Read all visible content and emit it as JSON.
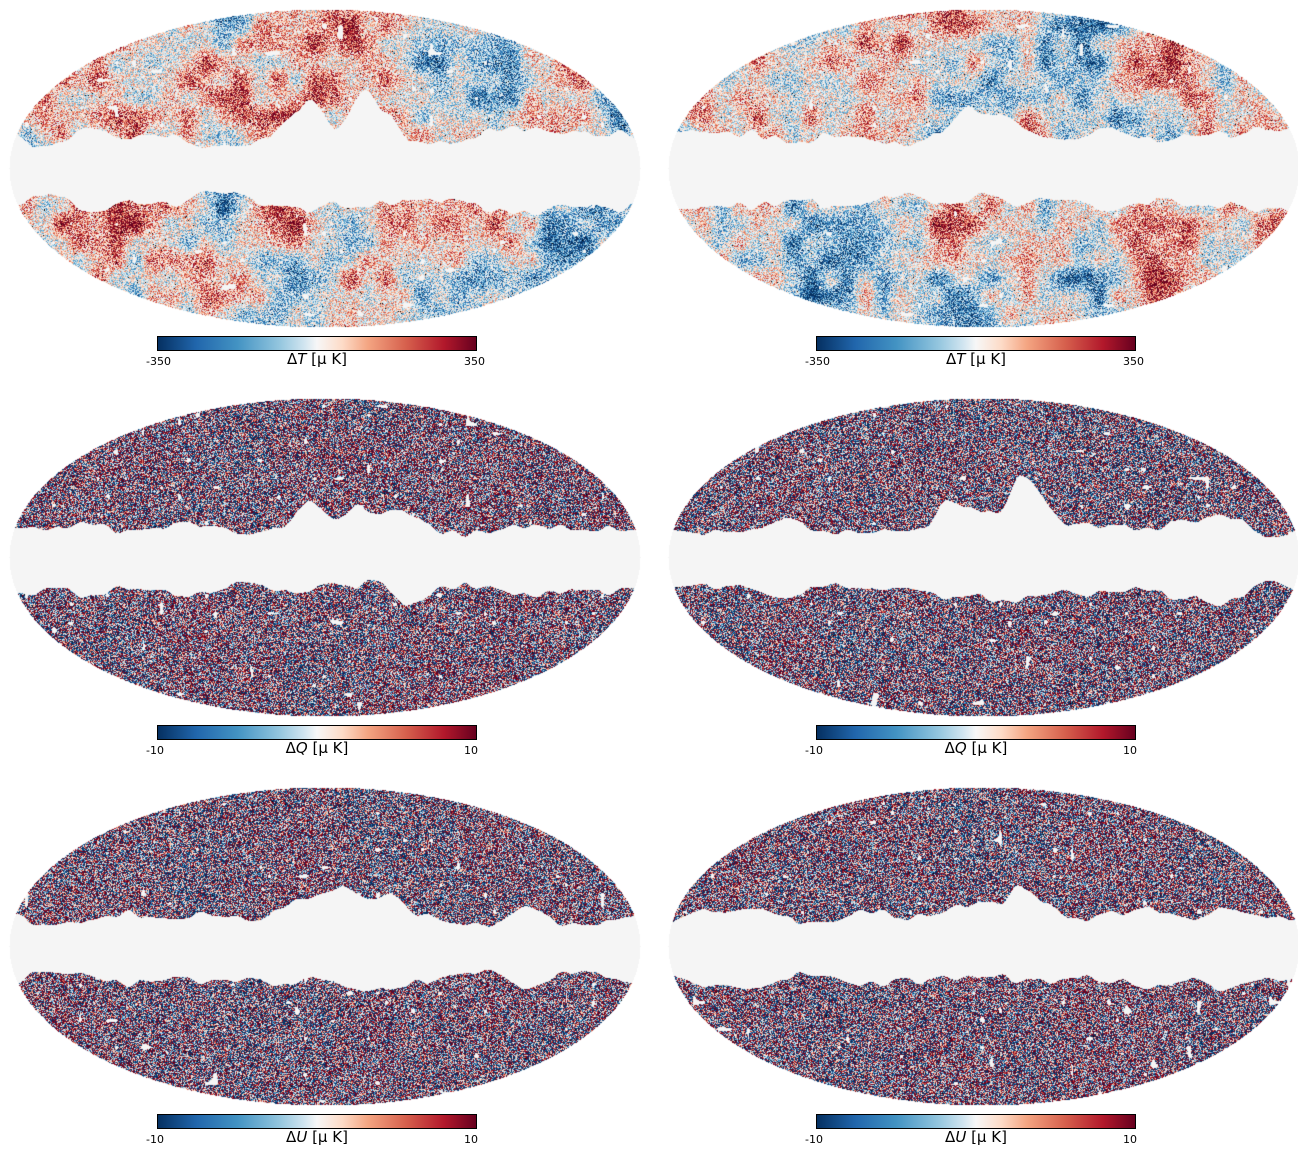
{
  "panels": [
    {
      "id": "T-left",
      "field": "T",
      "vmin": "-350",
      "vmax": "350",
      "label_prefix": "Δ",
      "label_var": "T",
      "label_unit": "[μ K]",
      "seed": 11,
      "mode": "smooth"
    },
    {
      "id": "T-right",
      "field": "T",
      "vmin": "-350",
      "vmax": "350",
      "label_prefix": "Δ",
      "label_var": "T",
      "label_unit": "[μ K]",
      "seed": 23,
      "mode": "smooth"
    },
    {
      "id": "Q-left",
      "field": "Q",
      "vmin": "-10",
      "vmax": "10",
      "label_prefix": "Δ",
      "label_var": "Q",
      "label_unit": "[μ K]",
      "seed": 37,
      "mode": "noisy"
    },
    {
      "id": "Q-right",
      "field": "Q",
      "vmin": "-10",
      "vmax": "10",
      "label_prefix": "Δ",
      "label_var": "Q",
      "label_unit": "[μ K]",
      "seed": 41,
      "mode": "noisy"
    },
    {
      "id": "U-left",
      "field": "U",
      "vmin": "-10",
      "vmax": "10",
      "label_prefix": "Δ",
      "label_var": "U",
      "label_unit": "[μ K]",
      "seed": 53,
      "mode": "noisy"
    },
    {
      "id": "U-right",
      "field": "U",
      "vmin": "-10",
      "vmax": "10",
      "label_prefix": "Δ",
      "label_var": "U",
      "label_unit": "[μ K]",
      "seed": 67,
      "mode": "noisy"
    }
  ],
  "colormap": [
    "#053061",
    "#2166ac",
    "#4393c3",
    "#92c5de",
    "#d1e5f0",
    "#f7f7f7",
    "#fddbc7",
    "#f4a582",
    "#d6604d",
    "#b2182b",
    "#67001f"
  ],
  "mask_color": "#f5f5f5",
  "map_projection": "mollweide"
}
